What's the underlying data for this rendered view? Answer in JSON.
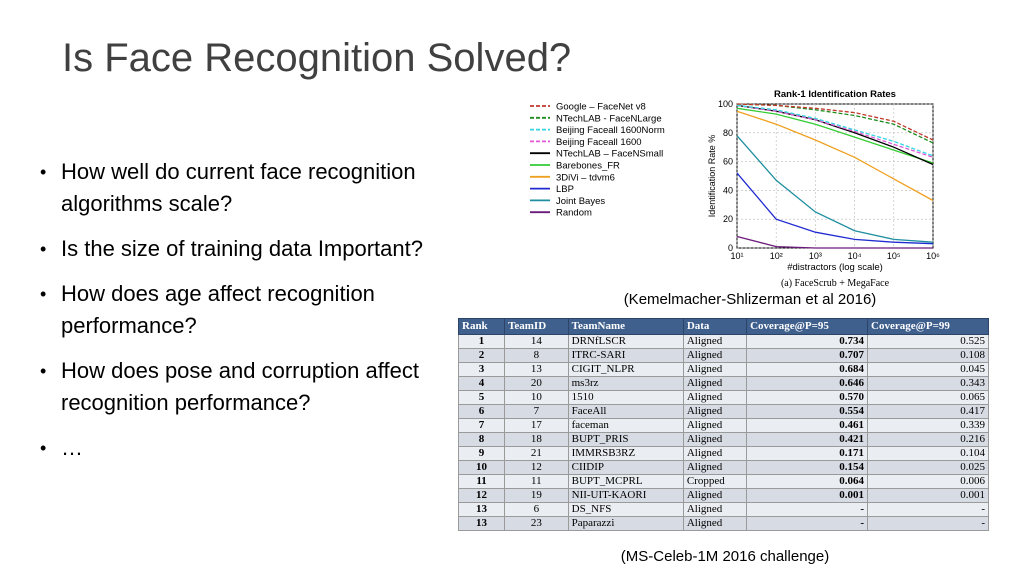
{
  "slide": {
    "title": "Is Face Recognition Solved?",
    "bullets": [
      "How well do current face recognition algorithms scale?",
      "Is the size of training data Important?",
      "How does age affect recognition performance?",
      "How does pose and corruption affect recognition performance?",
      "…"
    ],
    "bullet_char": "•",
    "caption_chart": "(Kemelmacher-Shlizerman et al 2016)",
    "caption_table": "(MS-Celeb-1M 2016 challenge)"
  },
  "chart_data": [
    {
      "type": "line",
      "title": "Rank-1 Identification Rates",
      "xlabel": "#distractors (log scale)",
      "ylabel": "Identification Rate %",
      "subtitle": "(a) FaceScrub + MegaFace",
      "x": [
        10,
        100,
        1000,
        10000,
        100000,
        1000000
      ],
      "x_tick_labels": [
        "10¹",
        "10²",
        "10³",
        "10⁴",
        "10⁵",
        "10⁶"
      ],
      "xlim": [
        10,
        1000000
      ],
      "ylim": [
        0,
        100
      ],
      "y_ticks": [
        0,
        20,
        40,
        60,
        80,
        100
      ],
      "log_x": true,
      "grid": true,
      "legend_position": "left-outside",
      "series": [
        {
          "name": "Google – FaceNet v8",
          "color": "#c0392b",
          "dash": "dashed",
          "values": [
            100,
            99,
            97,
            94,
            88,
            75
          ]
        },
        {
          "name": "NTechLAB - FaceNLarge",
          "color": "#1e8c1e",
          "dash": "dashed",
          "values": [
            100,
            99,
            96,
            92,
            86,
            73
          ]
        },
        {
          "name": "Beijing Faceall 1600Norm",
          "color": "#33d6e0",
          "dash": "dashed",
          "values": [
            99,
            96,
            90,
            82,
            74,
            64
          ]
        },
        {
          "name": "Beijing Faceall 1600",
          "color": "#e05ad8",
          "dash": "dashed",
          "values": [
            99,
            95,
            89,
            81,
            72,
            63
          ]
        },
        {
          "name": "NTechLAB – FaceNSmall",
          "color": "#000000",
          "dash": "solid",
          "values": [
            99,
            95,
            89,
            80,
            70,
            58
          ]
        },
        {
          "name": "Barebones_FR",
          "color": "#33cc33",
          "dash": "solid",
          "values": [
            97,
            93,
            86,
            77,
            68,
            59
          ]
        },
        {
          "name": "3DiVi – tdvm6",
          "color": "#f0a020",
          "dash": "solid",
          "values": [
            95,
            86,
            75,
            63,
            48,
            33
          ]
        },
        {
          "name": "LBP",
          "color": "#1f2bd0",
          "dash": "solid",
          "values": [
            52,
            20,
            11,
            6,
            4,
            3
          ]
        },
        {
          "name": "Joint Bayes",
          "color": "#1f8fa0",
          "dash": "solid",
          "values": [
            78,
            47,
            25,
            12,
            6,
            4
          ]
        },
        {
          "name": "Random",
          "color": "#6a1a7a",
          "dash": "solid",
          "values": [
            8,
            1,
            0,
            0,
            0,
            0
          ]
        }
      ]
    },
    {
      "type": "table",
      "columns": [
        "Rank",
        "TeamID",
        "TeamName",
        "Data",
        "Coverage@P=95",
        "Coverage@P=99"
      ],
      "rows": [
        [
          "1",
          "14",
          "DRNfLSCR",
          "Aligned",
          "0.734",
          "0.525"
        ],
        [
          "2",
          "8",
          "ITRC-SARI",
          "Aligned",
          "0.707",
          "0.108"
        ],
        [
          "3",
          "13",
          "CIGIT_NLPR",
          "Aligned",
          "0.684",
          "0.045"
        ],
        [
          "4",
          "20",
          "ms3rz",
          "Aligned",
          "0.646",
          "0.343"
        ],
        [
          "5",
          "10",
          "1510",
          "Aligned",
          "0.570",
          "0.065"
        ],
        [
          "6",
          "7",
          "FaceAll",
          "Aligned",
          "0.554",
          "0.417"
        ],
        [
          "7",
          "17",
          "faceman",
          "Aligned",
          "0.461",
          "0.339"
        ],
        [
          "8",
          "18",
          "BUPT_PRIS",
          "Aligned",
          "0.421",
          "0.216"
        ],
        [
          "9",
          "21",
          "IMMRSB3RZ",
          "Aligned",
          "0.171",
          "0.104"
        ],
        [
          "10",
          "12",
          "CIIDIP",
          "Aligned",
          "0.154",
          "0.025"
        ],
        [
          "11",
          "11",
          "BUPT_MCPRL",
          "Cropped",
          "0.064",
          "0.006"
        ],
        [
          "12",
          "19",
          "NII-UIT-KAORI",
          "Aligned",
          "0.001",
          "0.001"
        ],
        [
          "13",
          "6",
          "DS_NFS",
          "Aligned",
          "-",
          "-"
        ],
        [
          "13",
          "23",
          "Paparazzi",
          "Aligned",
          "-",
          "-"
        ]
      ]
    }
  ]
}
